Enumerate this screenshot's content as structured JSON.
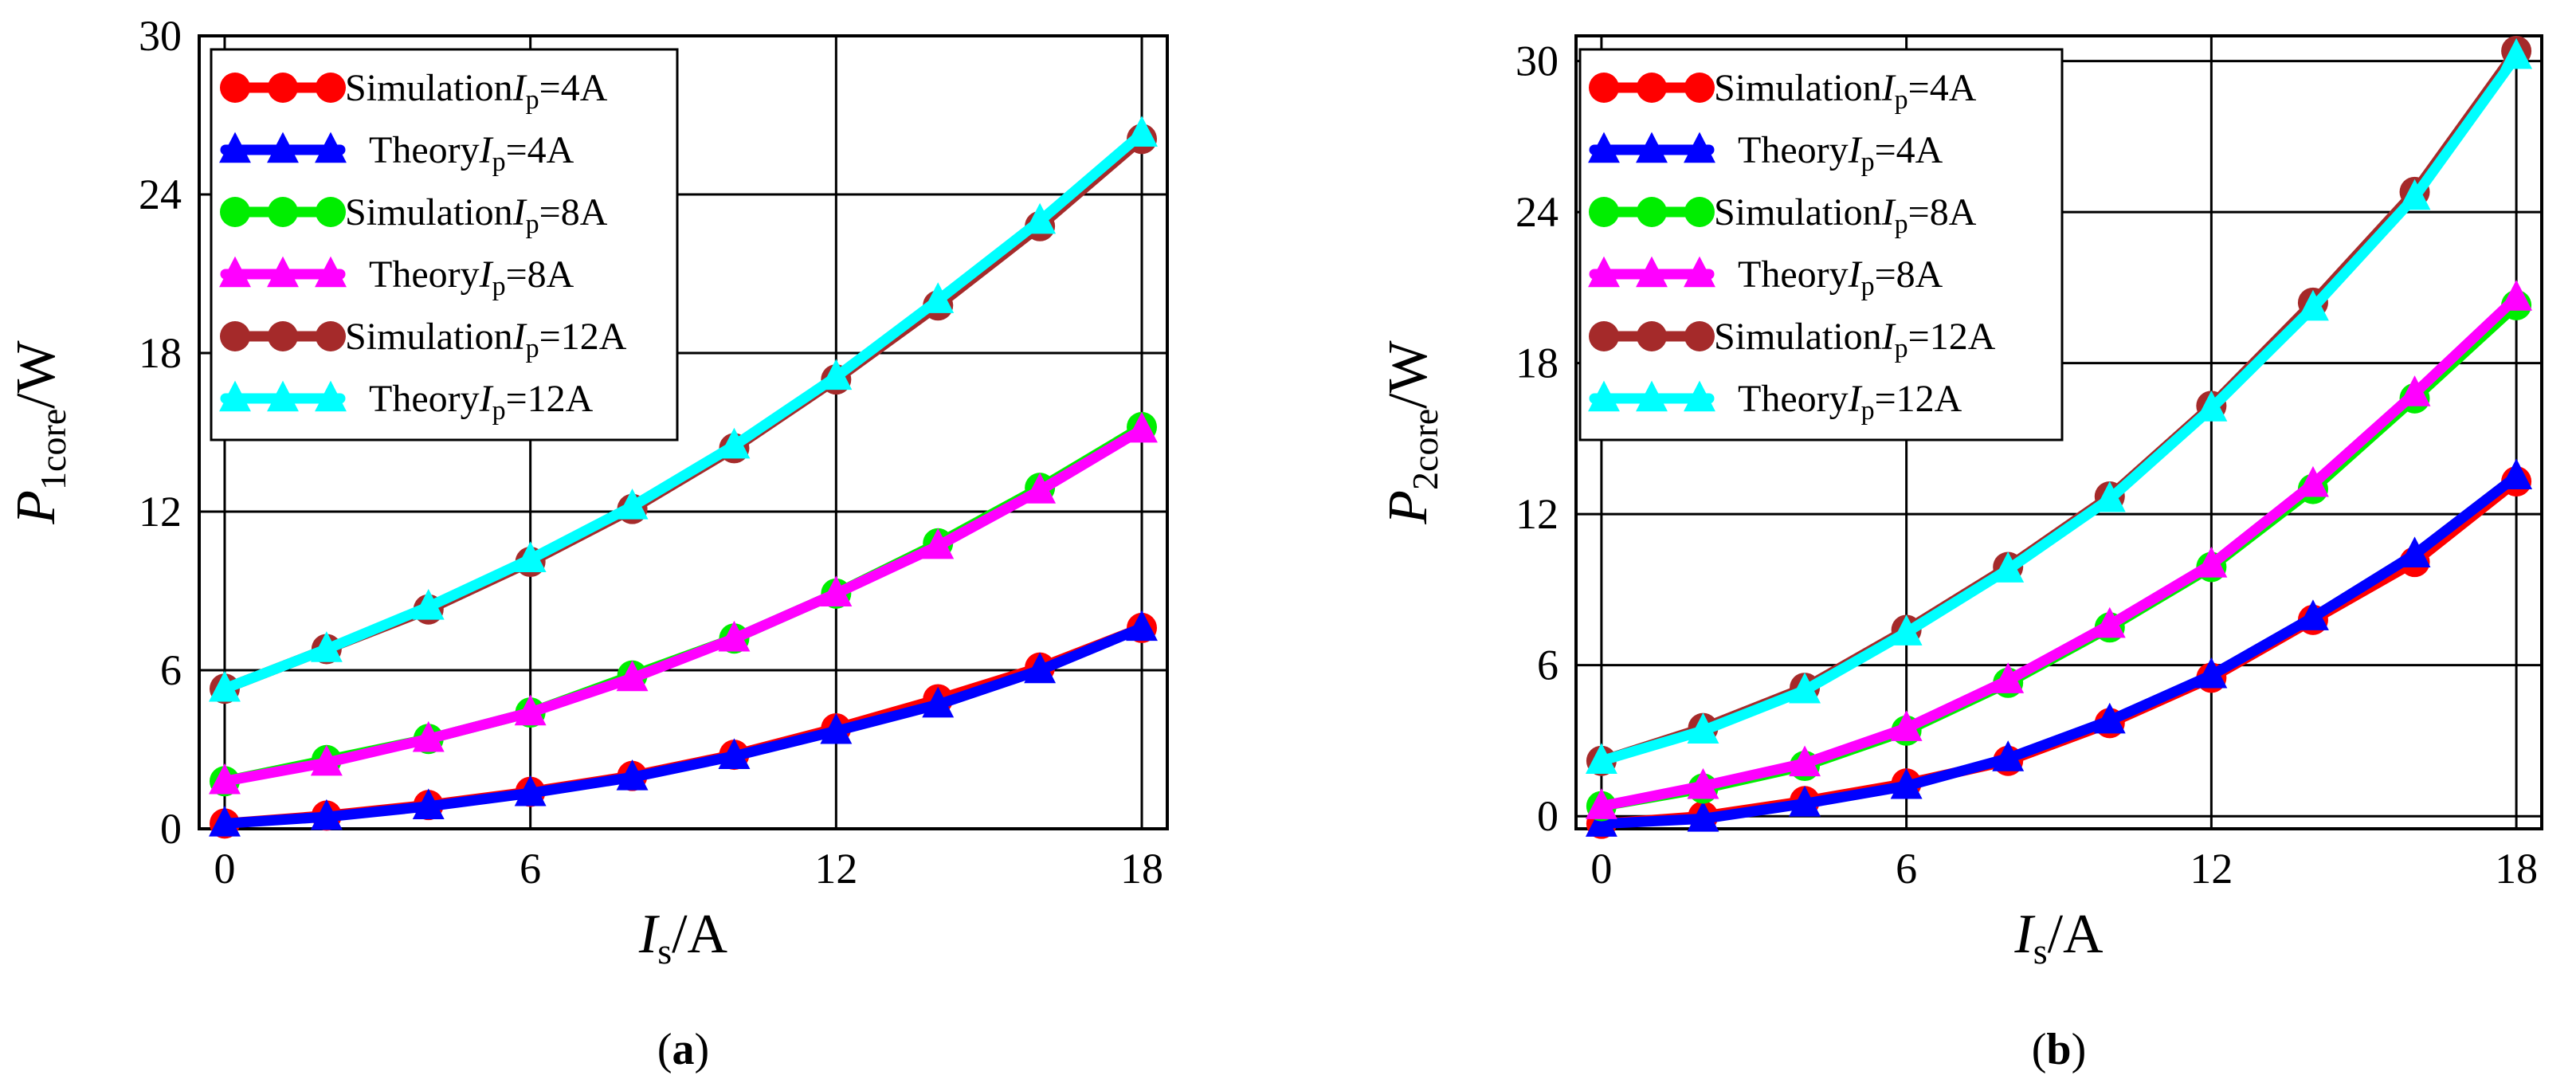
{
  "chart_data": [
    {
      "id": "a",
      "type": "line",
      "caption": "a",
      "xlabel": {
        "main": "I",
        "sub": "s",
        "unit": "/A"
      },
      "ylabel": {
        "main": "P",
        "sub": "1core",
        "unit": "/W"
      },
      "xlim": [
        -0.5,
        18.5
      ],
      "ylim": [
        0,
        30
      ],
      "xticks": [
        0,
        6,
        12,
        18
      ],
      "yticks": [
        0,
        6,
        12,
        18,
        24,
        30
      ],
      "grid": true,
      "legend_position": "top-left",
      "x": [
        0,
        2,
        4,
        6,
        8,
        10,
        12,
        14,
        16,
        18
      ],
      "series": [
        {
          "name": "Simulation",
          "ip": "4A",
          "color": "#ff0000",
          "marker": "circle",
          "values": [
            0.2,
            0.5,
            0.9,
            1.4,
            2.0,
            2.8,
            3.8,
            4.9,
            6.1,
            7.6
          ]
        },
        {
          "name": "Theory",
          "ip": "4A",
          "color": "#0000ff",
          "marker": "triangle",
          "values": [
            0.2,
            0.45,
            0.85,
            1.35,
            1.95,
            2.75,
            3.7,
            4.7,
            6.0,
            7.6
          ]
        },
        {
          "name": "Simulation",
          "ip": "8A",
          "color": "#00ee00",
          "marker": "circle",
          "values": [
            1.8,
            2.6,
            3.4,
            4.4,
            5.8,
            7.2,
            8.9,
            10.8,
            12.9,
            15.2
          ]
        },
        {
          "name": "Theory",
          "ip": "8A",
          "color": "#ff00ff",
          "marker": "triangle",
          "values": [
            1.8,
            2.5,
            3.4,
            4.4,
            5.7,
            7.2,
            8.9,
            10.7,
            12.8,
            15.1
          ]
        },
        {
          "name": "Simulation",
          "ip": "12A",
          "color": "#a52a2a",
          "marker": "circle",
          "values": [
            5.3,
            6.8,
            8.3,
            10.1,
            12.1,
            14.4,
            17.0,
            19.8,
            22.8,
            26.1
          ]
        },
        {
          "name": "Theory",
          "ip": "12A",
          "color": "#00ffff",
          "marker": "triangle",
          "values": [
            5.3,
            6.8,
            8.4,
            10.2,
            12.2,
            14.5,
            17.1,
            20.0,
            23.0,
            26.3
          ]
        }
      ]
    },
    {
      "id": "b",
      "type": "line",
      "caption": "b",
      "xlabel": {
        "main": "I",
        "sub": "s",
        "unit": "/A"
      },
      "ylabel": {
        "main": "P",
        "sub": "2core",
        "unit": "/W"
      },
      "xlim": [
        -0.5,
        18.5
      ],
      "ylim": [
        -0.5,
        31
      ],
      "xticks": [
        0,
        6,
        12,
        18
      ],
      "yticks": [
        0,
        6,
        12,
        18,
        24,
        30
      ],
      "grid": true,
      "legend_position": "top-left",
      "x": [
        0,
        2,
        4,
        6,
        8,
        10,
        12,
        14,
        16,
        18
      ],
      "series": [
        {
          "name": "Simulation",
          "ip": "4A",
          "color": "#ff0000",
          "marker": "circle",
          "values": [
            -0.3,
            0.0,
            0.6,
            1.3,
            2.2,
            3.7,
            5.5,
            7.8,
            10.1,
            13.3
          ]
        },
        {
          "name": "Theory",
          "ip": "4A",
          "color": "#0000ff",
          "marker": "triangle",
          "values": [
            -0.3,
            -0.1,
            0.5,
            1.2,
            2.3,
            3.8,
            5.6,
            7.9,
            10.4,
            13.5
          ]
        },
        {
          "name": "Simulation",
          "ip": "8A",
          "color": "#00ee00",
          "marker": "circle",
          "values": [
            0.4,
            1.1,
            2.0,
            3.4,
            5.3,
            7.5,
            9.9,
            13.0,
            16.6,
            20.3
          ]
        },
        {
          "name": "Theory",
          "ip": "8A",
          "color": "#ff00ff",
          "marker": "triangle",
          "values": [
            0.4,
            1.2,
            2.1,
            3.5,
            5.4,
            7.6,
            10.0,
            13.2,
            16.8,
            20.6
          ]
        },
        {
          "name": "Simulation",
          "ip": "12A",
          "color": "#a52a2a",
          "marker": "circle",
          "values": [
            2.2,
            3.5,
            5.1,
            7.4,
            9.9,
            12.7,
            16.3,
            20.4,
            24.8,
            30.4
          ]
        },
        {
          "name": "Theory",
          "ip": "12A",
          "color": "#00ffff",
          "marker": "triangle",
          "values": [
            2.2,
            3.4,
            5.0,
            7.3,
            9.8,
            12.6,
            16.2,
            20.2,
            24.6,
            30.2
          ]
        }
      ]
    }
  ]
}
